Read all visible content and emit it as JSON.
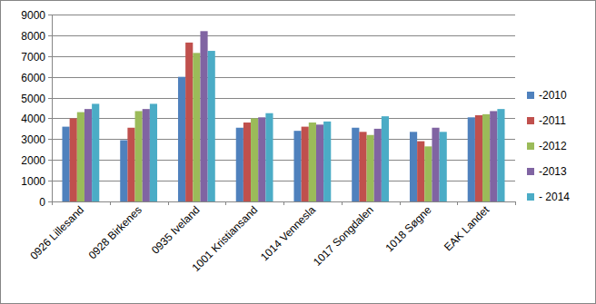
{
  "chart_data": {
    "type": "bar",
    "categories": [
      "0926 Lillesand",
      "0928 Birkenes",
      "0935 Iveland",
      "1001 Kristiansand",
      "1014 Vennesla",
      "1017 Songdalen",
      "1018 Søgne",
      "EAK Landet"
    ],
    "series": [
      {
        "name": "-2010",
        "color": "#4f81bd",
        "values": [
          3600,
          2950,
          6000,
          3550,
          3400,
          3550,
          3350,
          4050
        ]
      },
      {
        "name": "-2011",
        "color": "#c0504d",
        "values": [
          4000,
          3550,
          7650,
          3800,
          3600,
          3350,
          2900,
          4150
        ]
      },
      {
        "name": "-2012",
        "color": "#9bbb59",
        "values": [
          4300,
          4350,
          7150,
          4000,
          3800,
          3200,
          2650,
          4200
        ]
      },
      {
        "name": "-2013",
        "color": "#8064a2",
        "values": [
          4450,
          4450,
          8200,
          4050,
          3700,
          3500,
          3550,
          4350
        ]
      },
      {
        "name": "- 2014",
        "color": "#4bacc6",
        "values": [
          4700,
          4700,
          7250,
          4250,
          3850,
          4100,
          3350,
          4450
        ]
      }
    ],
    "ylim": [
      0,
      9000
    ],
    "yticks": [
      0,
      1000,
      2000,
      3000,
      4000,
      5000,
      6000,
      7000,
      8000,
      9000
    ],
    "grid": true,
    "legend": "right"
  }
}
